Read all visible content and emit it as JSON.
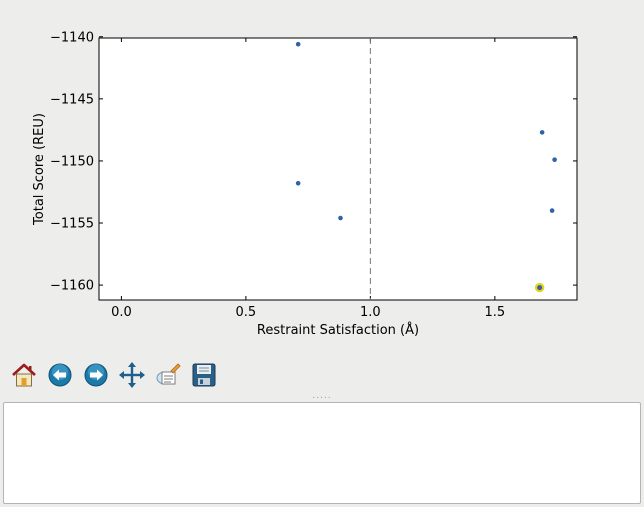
{
  "chart_data": {
    "type": "scatter",
    "xlabel": "Restraint Satisfaction (Å)",
    "ylabel": "Total Score (REU)",
    "xlim": [
      -0.09,
      1.83
    ],
    "ylim": [
      -1161.2,
      -1140.1
    ],
    "xticks": [
      0.0,
      0.5,
      1.0,
      1.5
    ],
    "xtick_labels": [
      "0.0",
      "0.5",
      "1.0",
      "1.5"
    ],
    "yticks": [
      -1140,
      -1145,
      -1150,
      -1155,
      -1160
    ],
    "ytick_labels": [
      "−1140",
      "−1145",
      "−1150",
      "−1155",
      "−1160"
    ],
    "vline": 1.0,
    "grid": false,
    "series": [
      {
        "values": [
          {
            "x": 0.71,
            "y": -1140.6
          },
          {
            "x": 0.71,
            "y": -1151.8
          },
          {
            "x": 0.88,
            "y": -1154.6
          },
          {
            "x": 1.69,
            "y": -1147.7
          },
          {
            "x": 1.74,
            "y": -1149.9
          },
          {
            "x": 1.73,
            "y": -1154.0
          }
        ]
      }
    ],
    "highlight": {
      "x": 1.68,
      "y": -1160.2
    },
    "colors": {
      "point": "#2f63a6",
      "highlight_ring": "#e6d21a",
      "vline": "#777777",
      "axes": "#000000"
    }
  },
  "toolbar": {
    "buttons": [
      {
        "name": "home-button",
        "icon": "home-icon"
      },
      {
        "name": "back-button",
        "icon": "back-arrow-icon"
      },
      {
        "name": "forward-button",
        "icon": "forward-arrow-icon"
      },
      {
        "name": "pan-button",
        "icon": "pan-arrows-icon"
      },
      {
        "name": "zoom-button",
        "icon": "zoom-rect-icon"
      },
      {
        "name": "save-button",
        "icon": "save-disk-icon"
      }
    ]
  },
  "splitter": {
    "handle": "....."
  }
}
